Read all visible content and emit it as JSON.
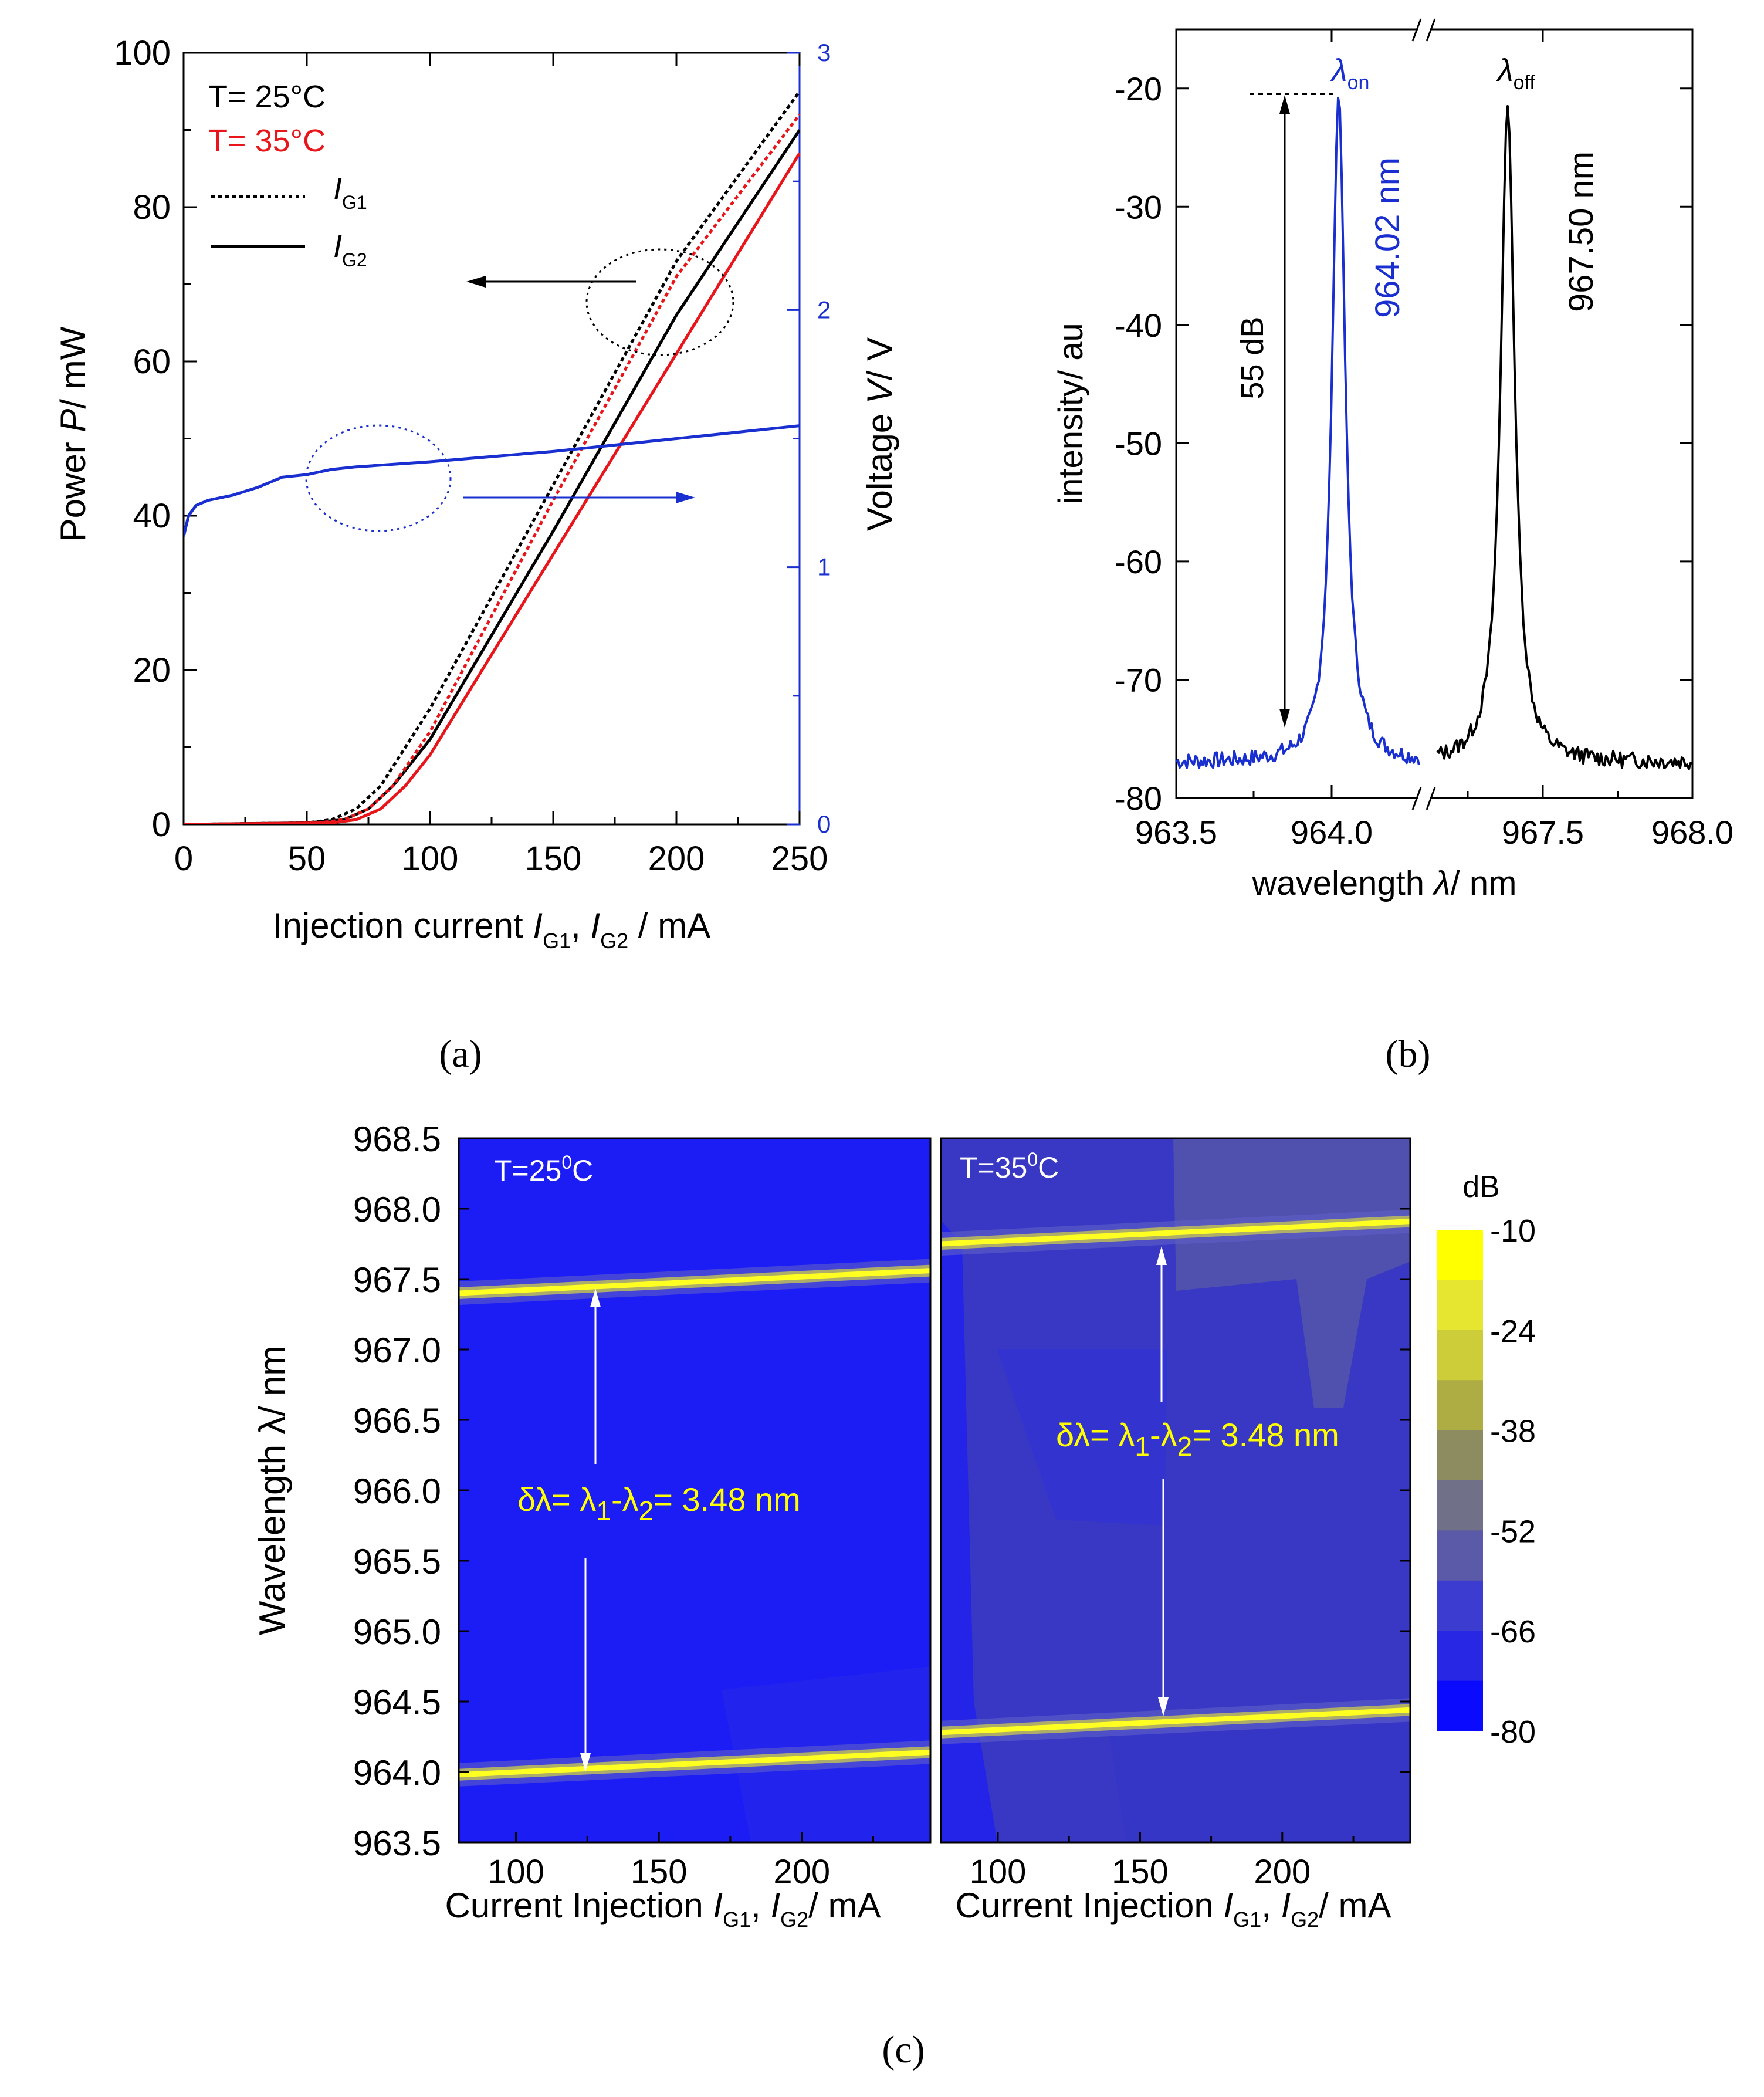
{
  "panels": {
    "a": {
      "caption": "(a)"
    },
    "b": {
      "caption": "(b)"
    },
    "c": {
      "caption": "(c)"
    }
  },
  "colors": {
    "black": "#000000",
    "red": "#e8161b",
    "blue": "#1a2fd0",
    "map_bg": "#1c1cf5",
    "map_band": "#ffff22"
  },
  "chart_data": [
    {
      "id": "a",
      "type": "line",
      "xlabel_prefix": "Injection current ",
      "xlabel_i1": "I",
      "xlabel_s1": "G1",
      "xlabel_sep": ", ",
      "xlabel_i2": "I",
      "xlabel_s2": "G2",
      "xlabel_suffix": " / mA",
      "ylabel_prefix": "Power ",
      "ylabel_italic": "P",
      "ylabel_suffix": "/ mW",
      "y2label_prefix": "Voltage ",
      "y2label_italic": "V",
      "y2label_suffix": "/ V",
      "xlim": [
        0,
        250
      ],
      "ylim": [
        0,
        100
      ],
      "y2lim": [
        0,
        3
      ],
      "xticks": [
        "0",
        "50",
        "100",
        "150",
        "200",
        "250"
      ],
      "yticks": [
        "0",
        "20",
        "40",
        "60",
        "80",
        "100"
      ],
      "y2ticks": [
        "0",
        "1",
        "2",
        "3"
      ],
      "legend": {
        "t25": "T= 25°C",
        "t35": "T= 35°C",
        "ig1_i": "I",
        "ig1_s": "G1",
        "ig2_i": "I",
        "ig2_s": "G2"
      },
      "series": [
        {
          "name": "T=25°C, IG1",
          "color": "black",
          "style": "dotted",
          "x": [
            0,
            50,
            60,
            70,
            80,
            100,
            150,
            200,
            250
          ],
          "y": [
            0,
            0.2,
            0.6,
            2,
            5,
            15,
            44,
            73,
            95
          ]
        },
        {
          "name": "T=25°C, IG2",
          "color": "black",
          "style": "solid",
          "x": [
            0,
            50,
            65,
            75,
            85,
            100,
            150,
            200,
            250
          ],
          "y": [
            0,
            0.2,
            0.6,
            2,
            5,
            11,
            38,
            66,
            90
          ]
        },
        {
          "name": "T=35°C, IG1",
          "color": "red",
          "style": "dotted",
          "x": [
            0,
            55,
            65,
            75,
            85,
            100,
            150,
            200,
            250
          ],
          "y": [
            0,
            0.2,
            0.6,
            2,
            5,
            12,
            42,
            71,
            92
          ]
        },
        {
          "name": "T=35°C, IG2",
          "color": "red",
          "style": "solid",
          "x": [
            0,
            60,
            70,
            80,
            90,
            100,
            150,
            200,
            250
          ],
          "y": [
            0,
            0.2,
            0.6,
            2,
            5,
            9,
            35,
            61,
            87
          ]
        },
        {
          "name": "Voltage",
          "color": "blue",
          "axis": "y2",
          "style": "solid",
          "x": [
            0,
            2,
            5,
            10,
            20,
            30,
            40,
            50,
            60,
            70,
            100,
            150,
            200,
            250
          ],
          "y": [
            1.12,
            1.2,
            1.24,
            1.26,
            1.28,
            1.31,
            1.35,
            1.36,
            1.38,
            1.39,
            1.41,
            1.45,
            1.5,
            1.55
          ]
        }
      ]
    },
    {
      "id": "b",
      "type": "line",
      "xlabel_prefix": "wavelength ",
      "xlabel_italic": "λ",
      "xlabel_suffix": "/ nm",
      "ylabel": "intensity/ au",
      "ylim": [
        -80,
        -15
      ],
      "xticks": [
        "963.5",
        "964.0",
        "967.5",
        "968.0"
      ],
      "yticks": [
        "-20",
        "-30",
        "-40",
        "-50",
        "-60",
        "-70",
        "-80"
      ],
      "peaks": [
        {
          "label_sym": "λ",
          "label_sub": "on",
          "wavelength_text": "964.02 nm",
          "center": 964.02,
          "peak": -20.5,
          "floor": -77,
          "color": "blue"
        },
        {
          "label_sym": "λ",
          "label_sub": "off",
          "wavelength_text": "967.50 nm",
          "center": 967.5,
          "peak": -21.5,
          "floor": -77,
          "color": "black"
        }
      ],
      "annotation": "55 dB"
    },
    {
      "id": "c",
      "type": "heatmap",
      "ylabel_prefix": "Wavelength ",
      "ylabel_sym": "λ",
      "ylabel_suffix": "/ nm",
      "xlabel_prefix": "Current Injection ",
      "xlabel_i1": "I",
      "xlabel_s1": "G1",
      "xlabel_sep": ", ",
      "xlabel_i2": "I",
      "xlabel_s2": "G2",
      "xlabel_suffix": "/ mA",
      "xlim": [
        80,
        245
      ],
      "ylim": [
        963.5,
        968.5
      ],
      "yticks": [
        "968.5",
        "968.0",
        "967.5",
        "967.0",
        "966.5",
        "966.0",
        "965.5",
        "965.0",
        "964.5",
        "964.0",
        "963.5"
      ],
      "xticks": [
        "100",
        "150",
        "200"
      ],
      "maps": [
        {
          "title": "T=25",
          "title_sup": "0",
          "title_unit": "C",
          "band1": [
            963.98,
            964.14
          ],
          "band2": [
            967.4,
            967.56
          ]
        },
        {
          "title": "T=35",
          "title_sup": "0",
          "title_unit": "C",
          "band1": [
            964.28,
            964.44
          ],
          "band2": [
            967.75,
            967.91
          ]
        }
      ],
      "annotation": {
        "prefix": "δλ= λ",
        "sub1": "1",
        "mid": "-λ",
        "sub2": "2",
        "suffix": "= 3.48 nm"
      },
      "colorbar": {
        "title": "dB",
        "ticks": [
          "-10",
          "-24",
          "-38",
          "-52",
          "-66",
          "-80"
        ],
        "colors": [
          "#ffff00",
          "#e6e630",
          "#cdcd3a",
          "#adad44",
          "#8c8c60",
          "#707088",
          "#5a5aa8",
          "#3c3cd0",
          "#2828e4",
          "#0a0aff"
        ]
      }
    }
  ]
}
